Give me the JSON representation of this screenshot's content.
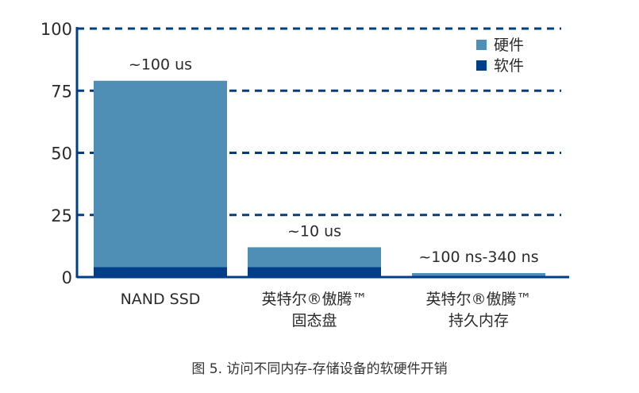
{
  "chart_data": {
    "type": "bar",
    "stacked": true,
    "categories": [
      [
        "NAND SSD"
      ],
      [
        "英特尔®傲腾™",
        "固态盘"
      ],
      [
        "英特尔®傲腾™",
        "持久内存"
      ]
    ],
    "series": [
      {
        "name": "软件",
        "color": "#003f87",
        "values": [
          4,
          4,
          0
        ]
      },
      {
        "name": "硬件",
        "color": "#4f8fb5",
        "values": [
          75,
          8,
          1.6
        ]
      }
    ],
    "bar_labels": [
      "~100 us",
      "~10 us",
      "~100 ns-340 ns"
    ],
    "yticks": [
      "0",
      "25",
      "50",
      "75",
      "100"
    ],
    "ylim": [
      0,
      100
    ],
    "grid": "dashed horizontal",
    "legend": {
      "position": "top-right",
      "order": [
        "硬件",
        "软件"
      ]
    },
    "axis_color": "#003f87",
    "title": "",
    "xlabel": "",
    "ylabel": ""
  },
  "caption": "图 5. 访问不同内存-存储设备的软硬件开销"
}
